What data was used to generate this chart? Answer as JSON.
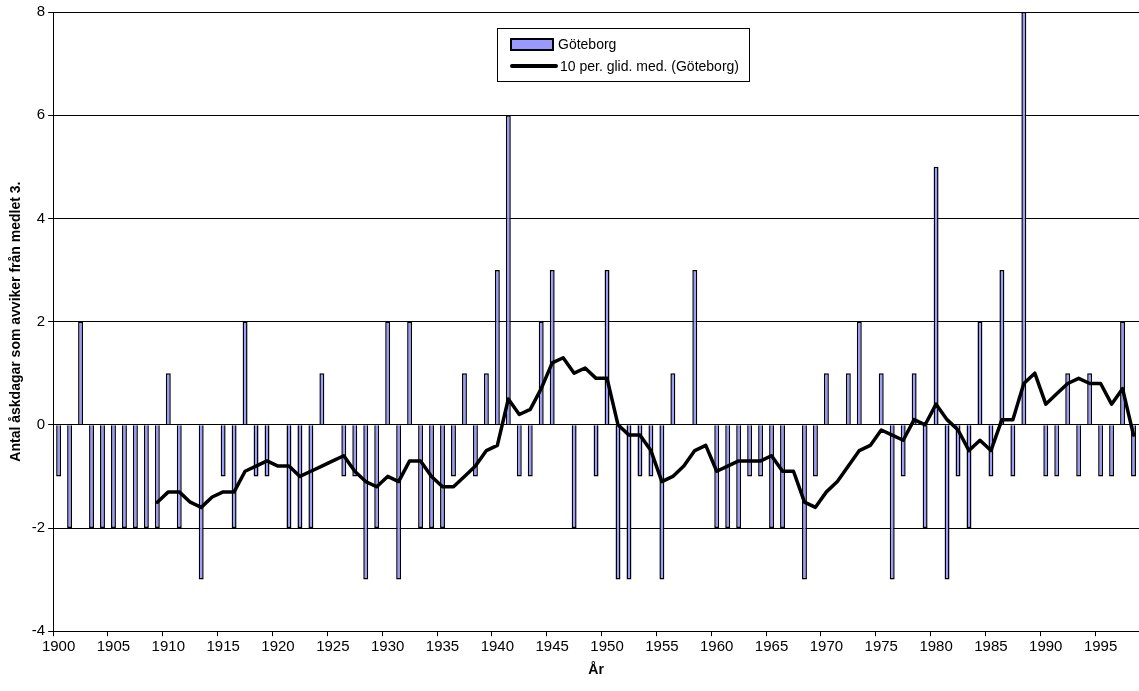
{
  "chart_data": {
    "type": "bar",
    "xlabel": "År",
    "ylabel": "Antal åskdagar som avviker från medlet 3.",
    "categories": [
      "1900",
      null,
      null,
      null,
      null,
      "1905",
      null,
      null,
      null,
      null,
      "1910",
      null,
      null,
      null,
      null,
      "1915",
      null,
      null,
      null,
      null,
      "1920",
      null,
      null,
      null,
      null,
      "1925",
      null,
      null,
      null,
      null,
      "1930",
      null,
      null,
      null,
      null,
      "1935",
      null,
      null,
      null,
      null,
      "1940",
      null,
      null,
      null,
      null,
      "1945",
      null,
      null,
      null,
      null,
      "1950",
      null,
      null,
      null,
      null,
      "1955",
      null,
      null,
      null,
      null,
      "1960",
      null,
      null,
      null,
      null,
      "1965",
      null,
      null,
      null,
      null,
      "1970",
      null,
      null,
      null,
      null,
      "1975",
      null,
      null,
      null,
      null,
      "1980",
      null,
      null,
      null,
      null,
      "1985",
      null,
      null,
      null,
      null,
      "1990",
      null,
      null,
      null,
      null,
      "1995",
      null,
      null,
      null
    ],
    "series": [
      {
        "name": "Göteborg",
        "color": "#9999ff",
        "values": [
          -1,
          -2,
          2,
          -2,
          -2,
          -2,
          -2,
          -2,
          -2,
          -2,
          1,
          -2,
          0,
          -3,
          0,
          -1,
          -2,
          2,
          -1,
          -1,
          0,
          -2,
          -2,
          -2,
          1,
          0,
          -1,
          -1,
          -3,
          -2,
          2,
          -3,
          2,
          -2,
          -2,
          -2,
          -1,
          1,
          -1,
          1,
          3,
          6,
          -1,
          -1,
          2,
          3,
          0,
          -2,
          0,
          -1,
          3,
          -3,
          -3,
          -1,
          -1,
          -3,
          1,
          0,
          3,
          0,
          -2,
          -2,
          -2,
          -1,
          -1,
          -2,
          -2,
          0,
          -3,
          -1,
          1,
          0,
          1,
          2,
          0,
          1,
          -3,
          -1,
          1,
          -2,
          5,
          -3,
          -1,
          -2,
          2,
          -1,
          3,
          -1,
          8,
          0,
          -1,
          -1,
          1,
          -1,
          1,
          -1,
          -1,
          2,
          -1
        ]
      },
      {
        "type": "line",
        "name": "10 per. glid. med. (Göteborg)",
        "color": "#000000",
        "values": [
          null,
          null,
          null,
          null,
          null,
          null,
          null,
          null,
          null,
          -1.5,
          -1.3,
          -1.3,
          -1.5,
          -1.6,
          -1.4,
          -1.3,
          -1.3,
          -0.9,
          -0.8,
          -0.7,
          -0.8,
          -0.8,
          -1.0,
          -0.9,
          -0.8,
          -0.7,
          -0.6,
          -0.9,
          -1.1,
          -1.2,
          -1.0,
          -1.1,
          -0.7,
          -0.7,
          -1.0,
          -1.2,
          -1.2,
          -1.0,
          -0.8,
          -0.5,
          -0.4,
          0.5,
          0.2,
          0.3,
          0.7,
          1.2,
          1.3,
          1.0,
          1.1,
          0.9,
          0.9,
          0,
          -0.2,
          -0.2,
          -0.5,
          -1.1,
          -1.0,
          -0.8,
          -0.5,
          -0.4,
          -0.9,
          -0.8,
          -0.7,
          -0.7,
          -0.7,
          -0.6,
          -0.9,
          -0.9,
          -1.5,
          -1.6,
          -1.3,
          -1.1,
          -0.8,
          -0.5,
          -0.4,
          -0.1,
          -0.2,
          -0.3,
          0.1,
          0,
          0.4,
          0.1,
          -0.1,
          -0.5,
          -0.3,
          -0.5,
          0.1,
          0.1,
          0.8,
          1.0,
          0.4,
          0.6,
          0.8,
          0.9,
          0.8,
          0.8,
          0.4,
          0.7,
          -0.2
        ]
      }
    ],
    "ylim": [
      -4,
      8
    ],
    "yticks": [
      -4,
      -2,
      0,
      2,
      4,
      6,
      8
    ],
    "grid": "y",
    "legend": "top"
  }
}
